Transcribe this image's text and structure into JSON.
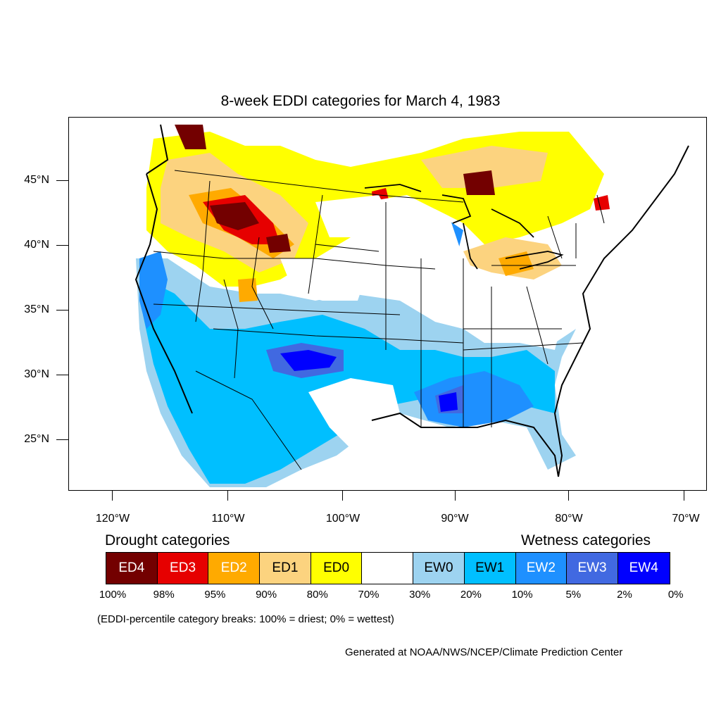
{
  "title": "8-week EDDI categories for March 4, 1983",
  "lat_labels": [
    "45°N",
    "40°N",
    "35°N",
    "30°N",
    "25°N"
  ],
  "lon_labels": [
    "120°W",
    "110°W",
    "100°W",
    "90°W",
    "80°W",
    "70°W"
  ],
  "drought_heading": "Drought categories",
  "wetness_heading": "Wetness categories",
  "legend": [
    {
      "label": "ED4",
      "color": "#730000",
      "text_color": "#ffffff"
    },
    {
      "label": "ED3",
      "color": "#e60000",
      "text_color": "#ffffff"
    },
    {
      "label": "ED2",
      "color": "#ffaa00",
      "text_color": "#ffffff"
    },
    {
      "label": "ED1",
      "color": "#fcd37f",
      "text_color": "#000000"
    },
    {
      "label": "ED0",
      "color": "#ffff00",
      "text_color": "#000000"
    },
    {
      "label": "",
      "color": "#ffffff",
      "text_color": "#000000"
    },
    {
      "label": "EW0",
      "color": "#9dd3f0",
      "text_color": "#000000"
    },
    {
      "label": "EW1",
      "color": "#00bfff",
      "text_color": "#000000"
    },
    {
      "label": "EW2",
      "color": "#1e90ff",
      "text_color": "#ffffff"
    },
    {
      "label": "EW3",
      "color": "#4169e1",
      "text_color": "#ffffff"
    },
    {
      "label": "EW4",
      "color": "#0000ff",
      "text_color": "#ffffff"
    }
  ],
  "breaks": [
    "100%",
    "98%",
    "95%",
    "90%",
    "80%",
    "70%",
    "30%",
    "20%",
    "10%",
    "5%",
    "2%",
    "0%"
  ],
  "note": "(EDDI-percentile category breaks: 100% = driest; 0% = wettest)",
  "credit": "Generated at NOAA/NWS/NCEP/Climate Prediction Center"
}
